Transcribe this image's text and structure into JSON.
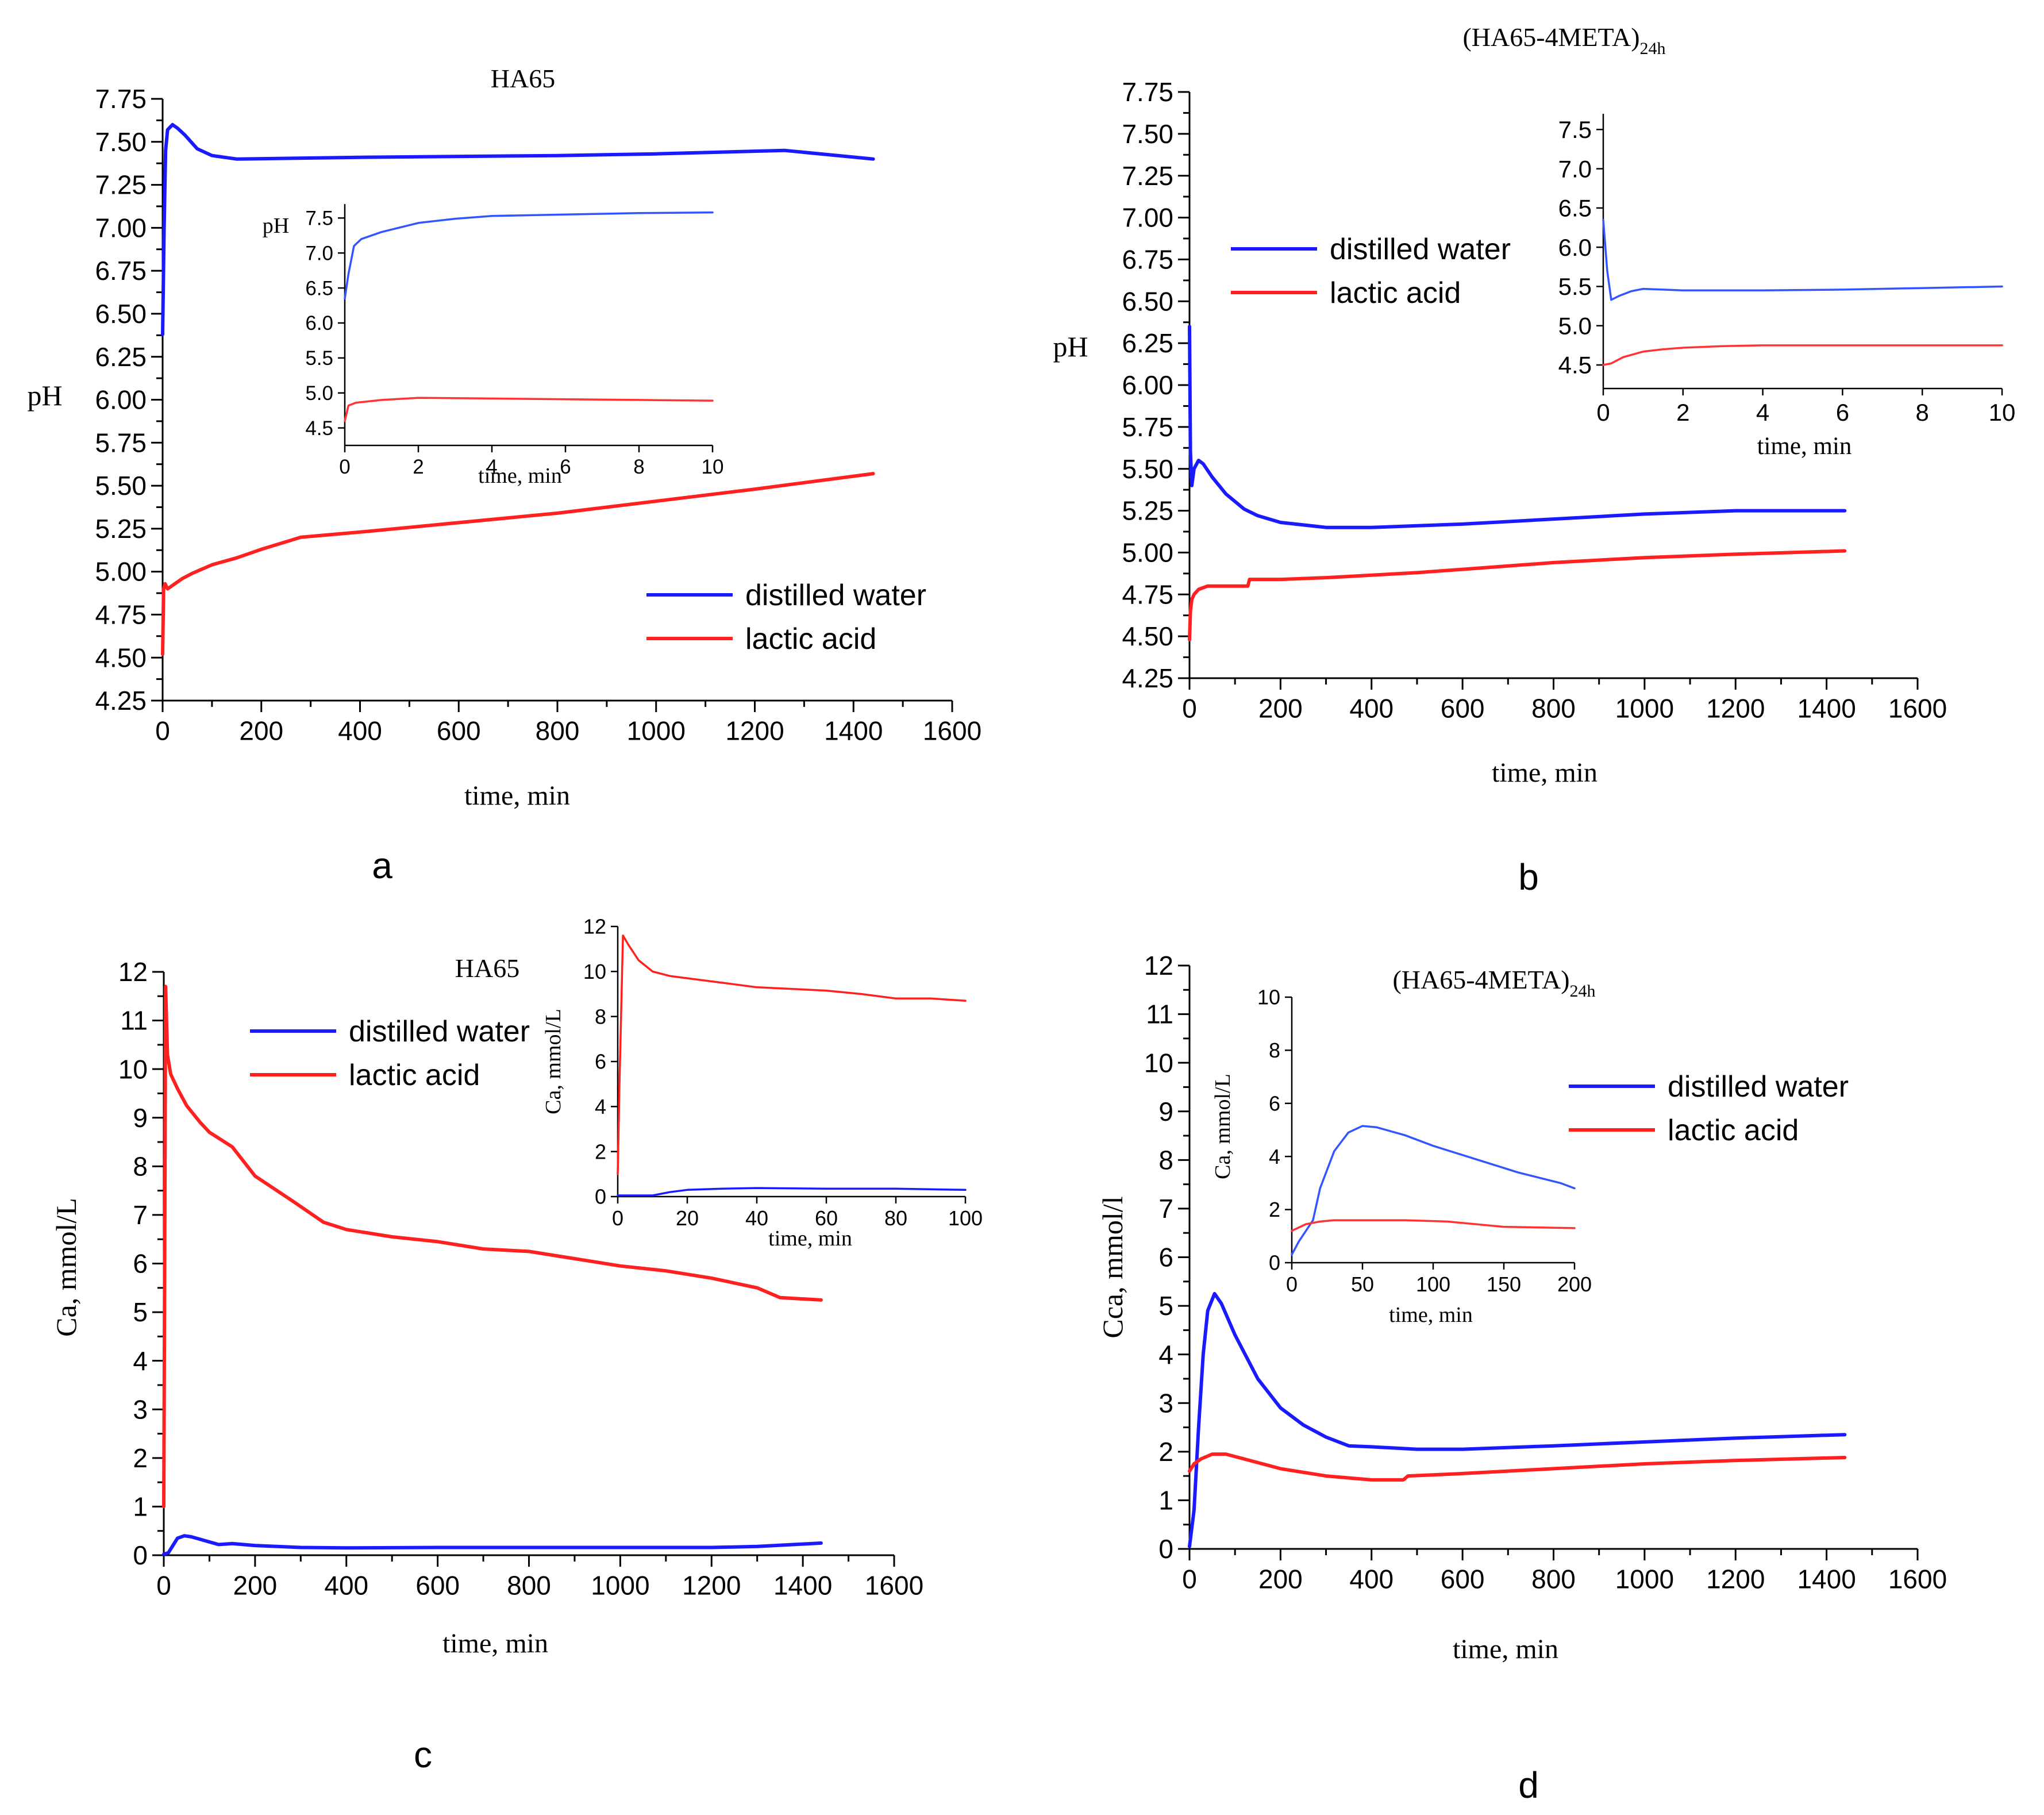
{
  "panels": [
    {
      "letter": "a",
      "chart_data": {
        "type": "line",
        "title": "HA65",
        "xlabel": "time, min",
        "ylabel": "pH",
        "xlim": [
          0,
          1600
        ],
        "ylim": [
          4.25,
          7.75
        ],
        "xticks": [
          0,
          200,
          400,
          600,
          800,
          1000,
          1200,
          1400,
          1600
        ],
        "yticks": [
          4.25,
          4.5,
          4.75,
          5.0,
          5.25,
          5.5,
          5.75,
          6.0,
          6.25,
          6.5,
          6.75,
          7.0,
          7.25,
          7.5,
          7.75
        ],
        "ytick_decimals": 2,
        "legend_position": "bottom-right",
        "series": [
          {
            "name": "distilled water",
            "color": "#1a1aff",
            "x": [
              0,
              3,
              6,
              10,
              20,
              30,
              45,
              70,
              100,
              150,
              400,
              800,
              1000,
              1260,
              1440
            ],
            "y": [
              6.38,
              7.0,
              7.45,
              7.57,
              7.6,
              7.58,
              7.54,
              7.46,
              7.42,
              7.4,
              7.41,
              7.42,
              7.43,
              7.45,
              7.4
            ]
          },
          {
            "name": "lactic acid",
            "color": "#ff2020",
            "x": [
              0,
              2,
              5,
              10,
              20,
              40,
              60,
              100,
              150,
              200,
              280,
              400,
              800,
              1200,
              1440
            ],
            "y": [
              4.52,
              4.9,
              4.93,
              4.9,
              4.92,
              4.96,
              4.99,
              5.04,
              5.08,
              5.13,
              5.2,
              5.23,
              5.34,
              5.48,
              5.57
            ]
          }
        ],
        "inset": {
          "xlabel": "time, min",
          "ylabel": "pH",
          "xlim": [
            0,
            10
          ],
          "ylim": [
            4.25,
            7.7
          ],
          "xticks": [
            0,
            2,
            4,
            6,
            8,
            10
          ],
          "yticks": [
            4.5,
            5.0,
            5.5,
            6.0,
            6.5,
            7.0,
            7.5
          ],
          "ytick_decimals": 1,
          "series": [
            {
              "name": "distilled water",
              "color": "#3355ff",
              "x": [
                0,
                0.1,
                0.25,
                0.45,
                1,
                2,
                3,
                4,
                6,
                8,
                10
              ],
              "y": [
                6.35,
                6.7,
                7.1,
                7.2,
                7.3,
                7.43,
                7.49,
                7.53,
                7.55,
                7.57,
                7.58
              ]
            },
            {
              "name": "lactic acid",
              "color": "#ff3333",
              "x": [
                0,
                0.1,
                0.3,
                1,
                2,
                4,
                6,
                8,
                10
              ],
              "y": [
                4.6,
                4.82,
                4.86,
                4.9,
                4.93,
                4.92,
                4.91,
                4.9,
                4.89
              ]
            }
          ]
        }
      }
    },
    {
      "letter": "b",
      "chart_data": {
        "type": "line",
        "title": "(HA65-4META)",
        "title_subscript": "24h",
        "xlabel": "time, min",
        "ylabel": "pH",
        "xlim": [
          0,
          1600
        ],
        "ylim": [
          4.25,
          7.75
        ],
        "xticks": [
          0,
          200,
          400,
          600,
          800,
          1000,
          1200,
          1400,
          1600
        ],
        "yticks": [
          4.25,
          4.5,
          4.75,
          5.0,
          5.25,
          5.5,
          5.75,
          6.0,
          6.25,
          6.5,
          6.75,
          7.0,
          7.25,
          7.5,
          7.75
        ],
        "ytick_decimals": 2,
        "legend_position": "top-left",
        "series": [
          {
            "name": "distilled water",
            "color": "#1a1aff",
            "x": [
              0,
              2,
              5,
              10,
              20,
              30,
              50,
              80,
              120,
              150,
              200,
              300,
              350,
              400,
              600,
              800,
              1000,
              1200,
              1440
            ],
            "y": [
              6.35,
              5.6,
              5.4,
              5.5,
              5.55,
              5.53,
              5.45,
              5.35,
              5.26,
              5.22,
              5.18,
              5.15,
              5.15,
              5.15,
              5.17,
              5.2,
              5.23,
              5.25,
              5.25
            ]
          },
          {
            "name": "lactic acid",
            "color": "#ff2020",
            "x": [
              0,
              2,
              5,
              10,
              20,
              40,
              60,
              100,
              128,
              132,
              200,
              300,
              500,
              600,
              800,
              1000,
              1200,
              1440
            ],
            "y": [
              4.48,
              4.65,
              4.72,
              4.75,
              4.78,
              4.8,
              4.8,
              4.8,
              4.8,
              4.84,
              4.84,
              4.85,
              4.88,
              4.9,
              4.94,
              4.97,
              4.99,
              5.01
            ]
          }
        ],
        "inset": {
          "xlabel": "time, min",
          "ylabel": "",
          "xlim": [
            0,
            10
          ],
          "ylim": [
            4.2,
            7.7
          ],
          "xticks": [
            0,
            2,
            4,
            6,
            8,
            10
          ],
          "yticks": [
            4.5,
            5.0,
            5.5,
            6.0,
            6.5,
            7.0,
            7.5
          ],
          "ytick_decimals": 1,
          "series": [
            {
              "name": "distilled water",
              "color": "#3355ff",
              "x": [
                0,
                0.1,
                0.2,
                0.4,
                0.7,
                1,
                1.5,
                2,
                4,
                6,
                8,
                10
              ],
              "y": [
                6.35,
                5.7,
                5.33,
                5.38,
                5.44,
                5.47,
                5.46,
                5.45,
                5.45,
                5.46,
                5.48,
                5.5
              ]
            },
            {
              "name": "lactic acid",
              "color": "#ff3333",
              "x": [
                0,
                0.2,
                0.5,
                1,
                1.5,
                2,
                3,
                4,
                6,
                8,
                10
              ],
              "y": [
                4.5,
                4.52,
                4.6,
                4.67,
                4.7,
                4.72,
                4.74,
                4.75,
                4.75,
                4.75,
                4.75
              ]
            }
          ]
        }
      }
    },
    {
      "letter": "c",
      "chart_data": {
        "type": "line",
        "title": "HA65",
        "xlabel": "time, min",
        "ylabel": "Ca, mmol/L",
        "xlim": [
          0,
          1600
        ],
        "ylim": [
          0,
          12
        ],
        "xticks": [
          0,
          200,
          400,
          600,
          800,
          1000,
          1200,
          1400,
          1600
        ],
        "yticks": [
          0,
          1,
          2,
          3,
          4,
          5,
          6,
          7,
          8,
          9,
          10,
          11,
          12
        ],
        "ytick_decimals": 0,
        "legend_position": "top-center",
        "series": [
          {
            "name": "distilled water",
            "color": "#1a1aff",
            "x": [
              0,
              10,
              20,
              30,
              45,
              60,
              90,
              120,
              150,
              200,
              300,
              400,
              600,
              800,
              1000,
              1200,
              1300,
              1440
            ],
            "y": [
              0.02,
              0.05,
              0.2,
              0.35,
              0.4,
              0.38,
              0.3,
              0.22,
              0.24,
              0.2,
              0.16,
              0.15,
              0.16,
              0.16,
              0.16,
              0.16,
              0.18,
              0.25
            ]
          },
          {
            "name": "lactic acid",
            "color": "#ff2020",
            "x": [
              0,
              2,
              4,
              8,
              15,
              30,
              50,
              80,
              100,
              150,
              200,
              280,
              350,
              400,
              500,
              600,
              700,
              800,
              900,
              1000,
              1100,
              1200,
              1300,
              1350,
              1440
            ],
            "y": [
              1.0,
              6.0,
              11.7,
              10.3,
              9.9,
              9.6,
              9.25,
              8.9,
              8.7,
              8.4,
              7.8,
              7.3,
              6.85,
              6.7,
              6.55,
              6.45,
              6.3,
              6.25,
              6.1,
              5.95,
              5.85,
              5.7,
              5.5,
              5.3,
              5.25
            ]
          }
        ],
        "inset": {
          "xlabel": "time, min",
          "ylabel": "Ca, mmol/L",
          "xlim": [
            0,
            100
          ],
          "ylim": [
            0,
            12
          ],
          "xticks": [
            0,
            20,
            40,
            60,
            80,
            100
          ],
          "yticks": [
            0,
            2,
            4,
            6,
            8,
            10,
            12
          ],
          "ytick_decimals": 0,
          "series": [
            {
              "name": "distilled water",
              "color": "#1a1aff",
              "x": [
                0,
                5,
                10,
                15,
                20,
                30,
                40,
                60,
                80,
                100
              ],
              "y": [
                0.05,
                0.05,
                0.05,
                0.2,
                0.3,
                0.35,
                0.38,
                0.35,
                0.35,
                0.3
              ]
            },
            {
              "name": "lactic acid",
              "color": "#ff2020",
              "x": [
                0,
                0.5,
                1.5,
                3,
                6,
                10,
                15,
                20,
                30,
                40,
                60,
                70,
                80,
                90,
                100
              ],
              "y": [
                1.0,
                5.0,
                11.6,
                11.2,
                10.5,
                10.0,
                9.8,
                9.7,
                9.5,
                9.3,
                9.15,
                9.0,
                8.8,
                8.8,
                8.7
              ]
            }
          ]
        }
      }
    },
    {
      "letter": "d",
      "chart_data": {
        "type": "line",
        "title": "(HA65-4META)",
        "title_subscript": "24h",
        "xlabel": "time, min",
        "ylabel": "Cca, mmol/l",
        "xlim": [
          0,
          1600
        ],
        "ylim": [
          0,
          12
        ],
        "xticks": [
          0,
          200,
          400,
          600,
          800,
          1000,
          1200,
          1400,
          1600
        ],
        "yticks": [
          0,
          1,
          2,
          3,
          4,
          5,
          6,
          7,
          8,
          9,
          10,
          11,
          12
        ],
        "ytick_decimals": 0,
        "legend_position": "top-right",
        "series": [
          {
            "name": "distilled water",
            "color": "#1a1aff",
            "x": [
              0,
              10,
              20,
              30,
              40,
              55,
              70,
              100,
              150,
              200,
              250,
              300,
              350,
              400,
              500,
              600,
              800,
              1000,
              1200,
              1440
            ],
            "y": [
              0.05,
              0.8,
              2.5,
              4.0,
              4.9,
              5.25,
              5.05,
              4.4,
              3.5,
              2.9,
              2.55,
              2.3,
              2.12,
              2.1,
              2.05,
              2.05,
              2.12,
              2.2,
              2.28,
              2.35
            ]
          },
          {
            "name": "lactic acid",
            "color": "#ff2020",
            "x": [
              0,
              10,
              25,
              50,
              80,
              120,
              200,
              300,
              400,
              470,
              480,
              600,
              800,
              1000,
              1200,
              1440
            ],
            "y": [
              1.6,
              1.75,
              1.85,
              1.95,
              1.95,
              1.85,
              1.65,
              1.5,
              1.42,
              1.42,
              1.5,
              1.55,
              1.65,
              1.75,
              1.82,
              1.88
            ]
          }
        ],
        "inset": {
          "xlabel": "time, min",
          "ylabel": "Ca, mmol/L",
          "xlim": [
            0,
            200
          ],
          "ylim": [
            0,
            10
          ],
          "xticks": [
            0,
            50,
            100,
            150,
            200
          ],
          "yticks": [
            0,
            2,
            4,
            6,
            8,
            10
          ],
          "ytick_decimals": 0,
          "series": [
            {
              "name": "distilled water",
              "color": "#3355ff",
              "x": [
                0,
                5,
                10,
                15,
                20,
                30,
                40,
                50,
                60,
                80,
                100,
                130,
                160,
                190,
                200
              ],
              "y": [
                0.3,
                0.8,
                1.2,
                1.6,
                2.8,
                4.2,
                4.9,
                5.15,
                5.1,
                4.8,
                4.4,
                3.9,
                3.4,
                3.0,
                2.8
              ]
            },
            {
              "name": "lactic acid",
              "color": "#ff3333",
              "x": [
                0,
                10,
                20,
                30,
                50,
                80,
                110,
                150,
                200
              ],
              "y": [
                1.2,
                1.45,
                1.55,
                1.6,
                1.6,
                1.6,
                1.55,
                1.35,
                1.3
              ]
            }
          ]
        }
      }
    }
  ]
}
